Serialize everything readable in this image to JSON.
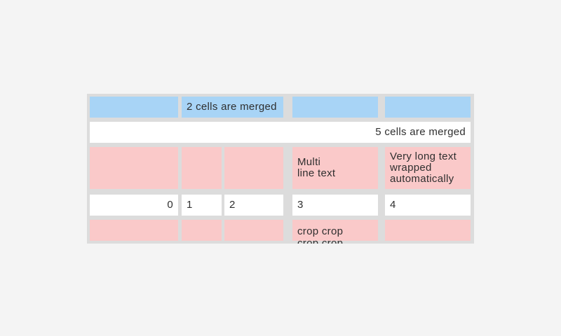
{
  "colors": {
    "page_background": "#f4f4f4",
    "table_background": "#dcdcdc",
    "header_cell_blue": "#a8d4f6",
    "highlight_cell_pink": "#fac9c9",
    "plain_cell_white": "#ffffff",
    "text": "#2f2f2f"
  },
  "table": {
    "row1": {
      "merged_label": "2 cells are merged"
    },
    "row2": {
      "merged_label": "5 cells are merged"
    },
    "row3": {
      "multiline_label": "Multi\nline text",
      "wrapped_label": "Very long text wrapped automatically"
    },
    "row4": {
      "c1": "0",
      "c2": "1",
      "c3": "2",
      "c4": "3",
      "c5": "4"
    },
    "row5": {
      "cropped_label": "crop crop\ncrop crop"
    }
  }
}
